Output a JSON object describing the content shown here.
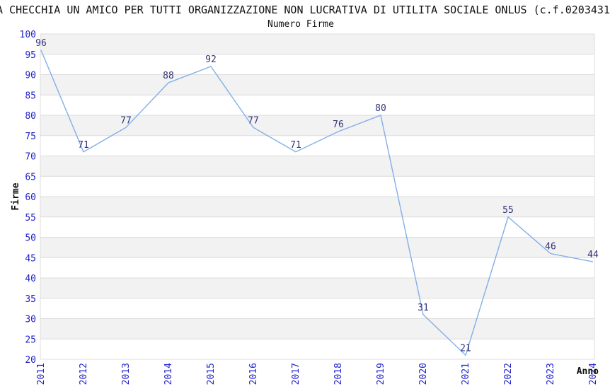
{
  "title": "A CHECCHIA UN AMICO PER TUTTI ORGANIZZAZIONE NON LUCRATIVA DI UTILITA SOCIALE ONLUS (c.f.0203431",
  "subtitle": "Numero Firme",
  "chart_data": {
    "type": "line",
    "title": "Numero Firme",
    "x": [
      2011,
      2012,
      2013,
      2014,
      2015,
      2016,
      2017,
      2018,
      2019,
      2020,
      2021,
      2022,
      2023,
      2024
    ],
    "values": [
      96,
      71,
      77,
      88,
      92,
      77,
      71,
      76,
      80,
      31,
      21,
      55,
      46,
      44
    ],
    "xlabel": "Anno",
    "ylabel": "Firme",
    "ylim": [
      20,
      100
    ],
    "ytick_step": 5,
    "legend": "none",
    "grid": "horizontal-bands"
  },
  "colors": {
    "line": "#82afe6",
    "tick_label": "#2222cc",
    "data_label": "#333377",
    "band": "#f2f2f2",
    "gridline": "#dcdcdc",
    "text": "#111111"
  }
}
